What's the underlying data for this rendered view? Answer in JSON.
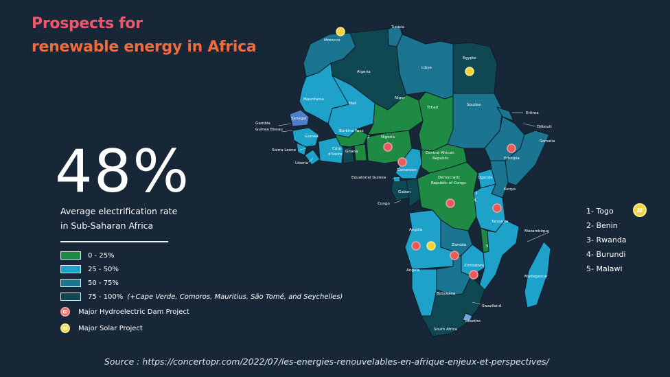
{
  "title": {
    "line1": "Prospects for",
    "line2": "renewable energy in Africa"
  },
  "stat": {
    "value": "48%",
    "caption_line1": "Average electrification rate",
    "caption_line2": "in Sub-Saharan Africa"
  },
  "legend": {
    "ranges": [
      {
        "label": "0 - 25%",
        "color": "#1f8a43"
      },
      {
        "label": "25 - 50%",
        "color": "#1ea2c9"
      },
      {
        "label": "50 - 75%",
        "color": "#1b7591"
      },
      {
        "label": "75 - 100%",
        "color": "#0f4853",
        "note": "(+Cape Verde, Comoros, Mauritius, São Tomé, and Seychelles)"
      }
    ],
    "hydro_label": "Major Hydroelectric Dam Project",
    "solar_label": "Major Solar Project",
    "hydro_icon": "dam-icon",
    "solar_icon": "solar-panel-icon"
  },
  "numbered_countries": [
    "1- Togo",
    "2- Benin",
    "3- Rwanda",
    "4- Burundi",
    "5- Malawi"
  ],
  "map_labels": {
    "tunisia": "Tunisia",
    "morocco": "Morocco",
    "algeria": "Algeria",
    "libye": "Libye",
    "egypte": "Egypte",
    "mauritania": "Mauritania",
    "mali": "Mali",
    "niger": "Niger",
    "tchad": "Tchad",
    "soudan": "Soudan",
    "eritrea": "Eritrea",
    "djibouti": "Djibouti",
    "somalia": "Somalia",
    "ethiopia": "Ethiopia",
    "senegal": "Senegal",
    "gambia": "Gambia",
    "guinea_bissau": "Guinea Bissau",
    "guinea": "Guinea",
    "sierra_leone": "Sierra Leone",
    "liberia": "Liberia",
    "burkina_faso": "Burkina Faso",
    "cote_divoire_1": "Côte",
    "cote_divoire_2": "d'Ivoire",
    "ghana": "Ghana",
    "nigeria": "Nigeria",
    "cameroon": "Cameroon",
    "car_1": "Central African",
    "car_2": "Republic",
    "drc_1": "Democratic",
    "drc_2": "Republic of Congo",
    "equatorial_guinea": "Equatorial Guinea",
    "gabon": "Gabon",
    "congo": "Congo",
    "uganda": "Uganda",
    "kenya": "Kenya",
    "tanzania": "Tanzania",
    "angola_n": "Angola",
    "angola_s": "Angola",
    "zambie": "Zambie",
    "zimbabwe": "Zimbabwe",
    "botswana": "Botswana",
    "mozambique": "Mozambique",
    "madagascar": "Madagascar",
    "swaziland": "Swaziland",
    "lesotho": "Lesotho",
    "south_africa": "South Africa",
    "num_2": "2",
    "num_3": "3",
    "num_4": "4",
    "num_5": "5"
  },
  "source": "Source : https://concertopr.com/2022/07/les-energies-renouvelables-en-afrique-enjeux-et-perspectives/"
}
